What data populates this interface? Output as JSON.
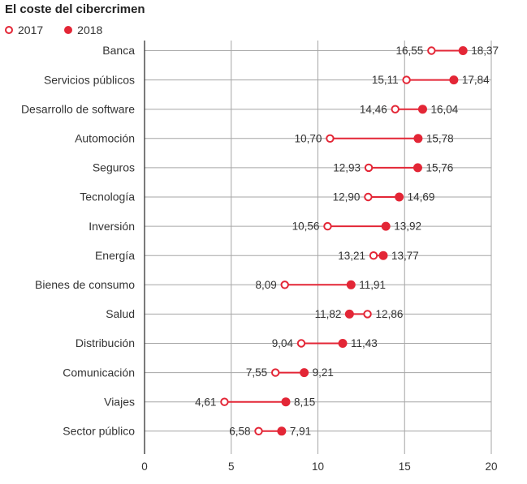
{
  "title": "El coste del cibercrimen",
  "legend": [
    {
      "name": "2017",
      "style": "open"
    },
    {
      "name": "2018",
      "style": "filled"
    }
  ],
  "colors": {
    "accent": "#e32636",
    "grid": "#a6a6a6",
    "axis": "#222222",
    "text": "#333333"
  },
  "chart_data": {
    "type": "dumbbell",
    "title": "El coste del cibercrimen",
    "xlabel": "",
    "ylabel": "",
    "xlim": [
      0,
      20
    ],
    "xticks": [
      0,
      5,
      10,
      15,
      20
    ],
    "grid": true,
    "legend_position": "top-left",
    "categories": [
      "Banca",
      "Servicios públicos",
      "Desarrollo de software",
      "Automoción",
      "Seguros",
      "Tecnología",
      "Inversión",
      "Energía",
      "Bienes de consumo",
      "Salud",
      "Distribución",
      "Comunicación",
      "Viajes",
      "Sector público"
    ],
    "series": [
      {
        "name": "2017",
        "values": [
          16.55,
          15.11,
          14.46,
          10.7,
          12.93,
          12.9,
          10.56,
          13.21,
          8.09,
          12.86,
          9.04,
          7.55,
          4.61,
          6.58
        ],
        "labels": [
          "16,55",
          "15,11",
          "14,46",
          "10,70",
          "12,93",
          "12,90",
          "10,56",
          "13,21",
          "8,09",
          "12,86",
          "9,04",
          "7,55",
          "4,61",
          "6,58"
        ]
      },
      {
        "name": "2018",
        "values": [
          18.37,
          17.84,
          16.04,
          15.78,
          15.76,
          14.69,
          13.92,
          13.77,
          11.91,
          11.82,
          11.43,
          9.21,
          8.15,
          7.91
        ],
        "labels": [
          "18,37",
          "17,84",
          "16,04",
          "15,78",
          "15,76",
          "14,69",
          "13,92",
          "13,77",
          "11,91",
          "11,82",
          "11,43",
          "9,21",
          "8,15",
          "7,91"
        ]
      }
    ]
  }
}
